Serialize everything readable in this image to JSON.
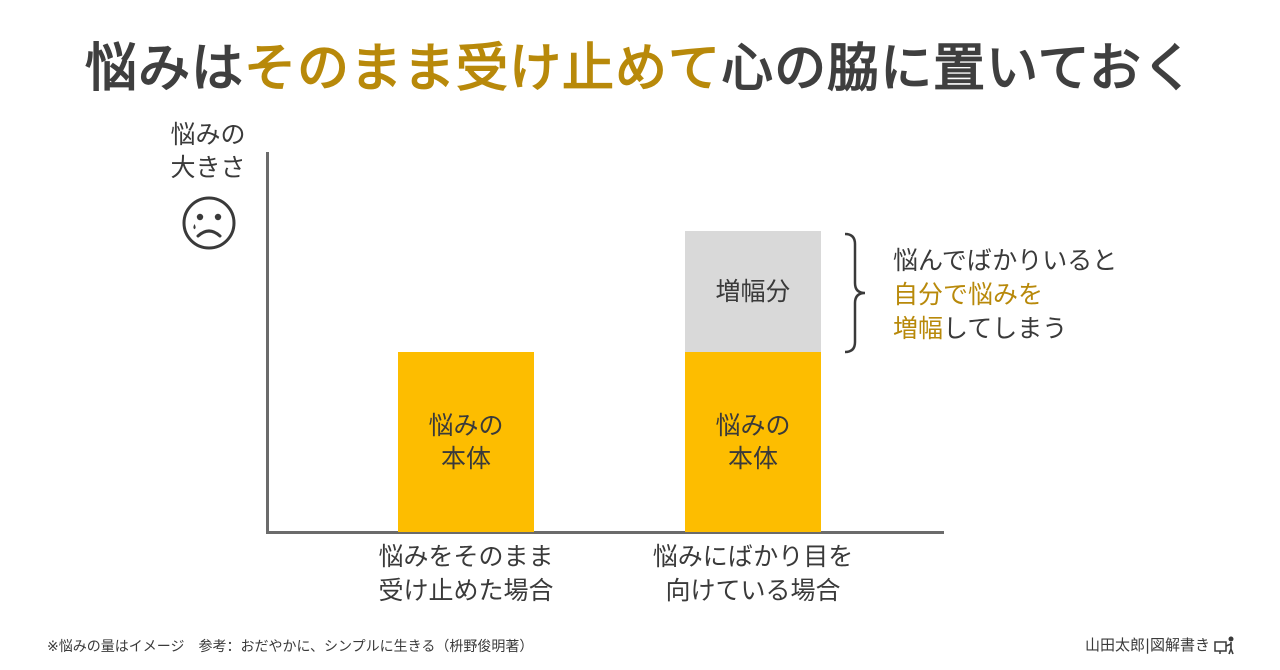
{
  "title": {
    "part1": "悩みは",
    "part2": "そのまま受け止めて",
    "part3": "心の脇に置いておく"
  },
  "y_axis": {
    "label_line1": "悩みの",
    "label_line2": "大きさ"
  },
  "chart_data": {
    "type": "bar",
    "stacked": true,
    "categories": [
      [
        "悩みをそのまま",
        "受け止めた場合"
      ],
      [
        "悩みにばかり目を",
        "向けている場合"
      ]
    ],
    "series": [
      {
        "label_lines": [
          "悩みの",
          "本体"
        ],
        "values": [
          1.0,
          1.0
        ],
        "color": "#fdbd00"
      },
      {
        "label_lines": [
          "増幅分"
        ],
        "values": [
          0,
          0.67
        ],
        "color": "#d9d9d9"
      }
    ],
    "ylim": [
      0,
      2.12
    ]
  },
  "annotation": {
    "line1": "悩んでばかりいると",
    "line2_highlight": "自分で悩みを",
    "line3_highlight": "増幅",
    "line3_rest": "してしまう"
  },
  "colors": {
    "accent": "#b8890a",
    "bar_main": "#fdbd00",
    "bar_extra": "#d9d9d9",
    "axis": "#6b6b6b"
  },
  "icons": {
    "face": "sad-face-icon",
    "presenter": "presenter-icon"
  },
  "footnote": "※悩みの量はイメージ　参考：おだやかに、シンプルに生きる（枡野俊明著）",
  "credit": "山田太郎|図解書き"
}
